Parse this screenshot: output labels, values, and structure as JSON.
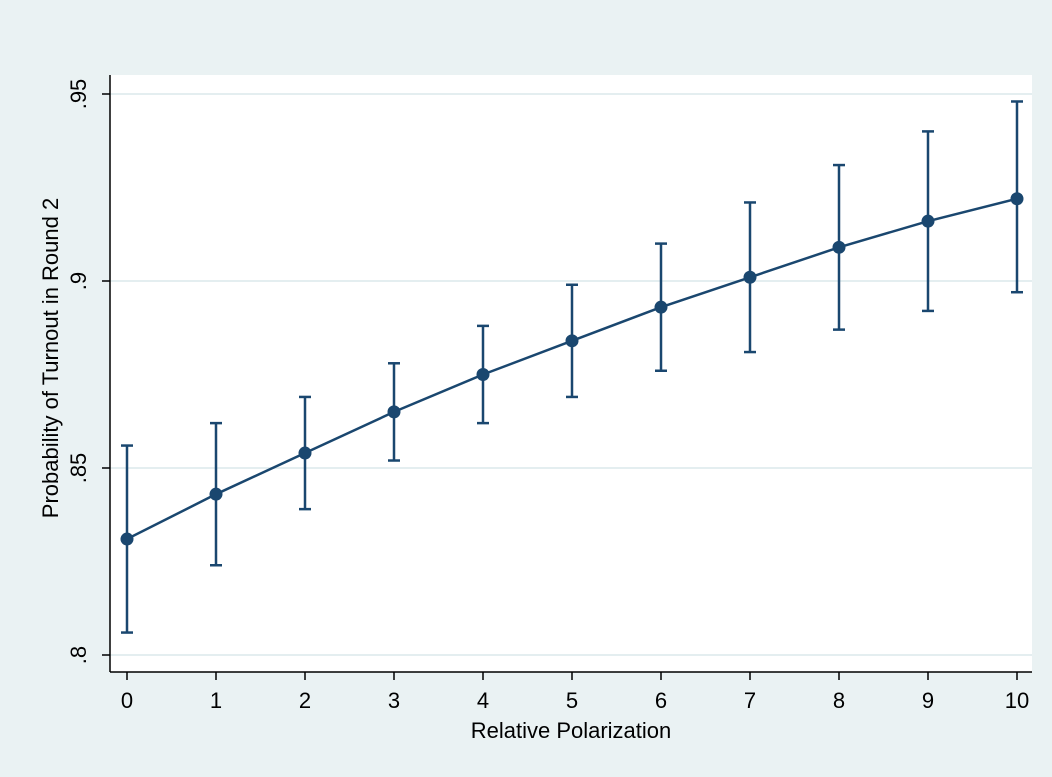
{
  "chart_data": {
    "type": "line",
    "title": "",
    "xlabel": "Relative Polarization",
    "ylabel": "Probability of Turnout in Round 2",
    "x": [
      0,
      1,
      2,
      3,
      4,
      5,
      6,
      7,
      8,
      9,
      10
    ],
    "xticks": [
      "0",
      "1",
      "2",
      "3",
      "4",
      "5",
      "6",
      "7",
      "8",
      "9",
      "10"
    ],
    "yticks": [
      {
        "value": 0.8,
        "label": ".8"
      },
      {
        "value": 0.85,
        "label": ".85"
      },
      {
        "value": 0.9,
        "label": ".9"
      },
      {
        "value": 0.95,
        "label": ".95"
      }
    ],
    "xlim": [
      0,
      10
    ],
    "ylim": [
      0.8,
      0.95
    ],
    "grid": "horizontal",
    "series": [
      {
        "color": "#1a476f",
        "values": [
          0.831,
          0.843,
          0.854,
          0.865,
          0.875,
          0.884,
          0.893,
          0.901,
          0.909,
          0.916,
          0.922
        ],
        "lower": [
          0.806,
          0.824,
          0.839,
          0.852,
          0.862,
          0.869,
          0.876,
          0.881,
          0.887,
          0.892,
          0.897
        ],
        "upper": [
          0.856,
          0.862,
          0.869,
          0.878,
          0.888,
          0.899,
          0.91,
          0.921,
          0.931,
          0.94,
          0.948
        ]
      }
    ]
  }
}
